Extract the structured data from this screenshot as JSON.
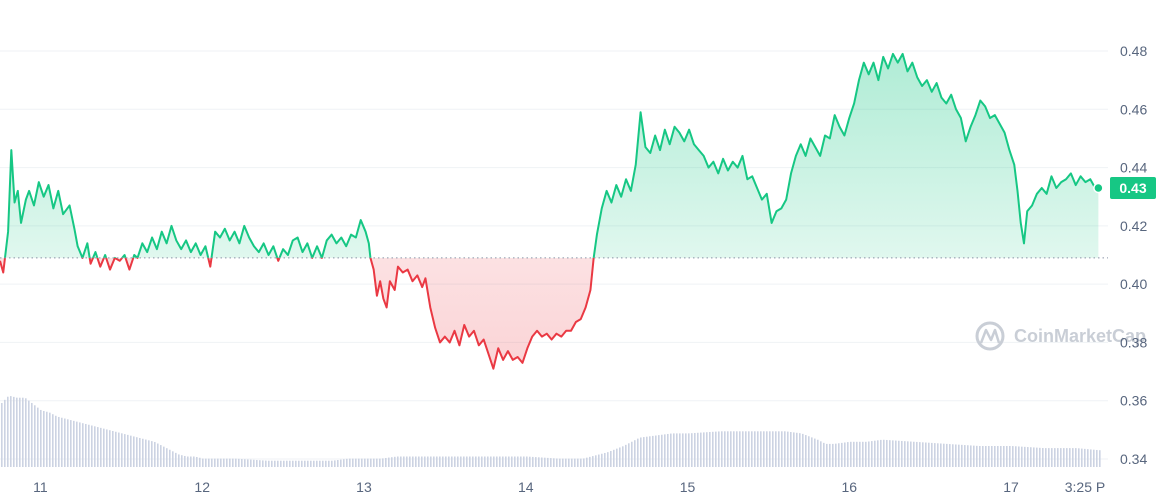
{
  "chart_data": {
    "type": "area",
    "title": "",
    "xlabel": "",
    "ylabel": "",
    "x_tick_labels": [
      "11",
      "12",
      "13",
      "14",
      "15",
      "16",
      "17",
      "3:25 P"
    ],
    "y_tick_labels": [
      "0.48",
      "0.46",
      "0.44",
      "0.42",
      "0.40",
      "0.38",
      "0.36",
      "0.34"
    ],
    "ylim": [
      0.34,
      0.48
    ],
    "xlim_days": [
      10.75,
      17.55
    ],
    "baseline": 0.409,
    "current_price_label": "0.43",
    "grid": "horizontal",
    "watermark": "CoinMarketCap",
    "colors": {
      "up": "#16c784",
      "down": "#ea3943",
      "volume": "#ccd3e2",
      "grid": "#eff2f5",
      "baseline": "#8a93a6",
      "axis_text": "#58667e",
      "watermark": "#c9ced6"
    },
    "series": [
      {
        "values": [
          [
            10.75,
            0.408
          ],
          [
            10.77,
            0.404
          ],
          [
            10.8,
            0.418
          ],
          [
            10.82,
            0.446
          ],
          [
            10.84,
            0.428
          ],
          [
            10.86,
            0.432
          ],
          [
            10.88,
            0.421
          ],
          [
            10.91,
            0.429
          ],
          [
            10.93,
            0.432
          ],
          [
            10.96,
            0.427
          ],
          [
            10.99,
            0.435
          ],
          [
            11.02,
            0.43
          ],
          [
            11.05,
            0.434
          ],
          [
            11.08,
            0.426
          ],
          [
            11.11,
            0.432
          ],
          [
            11.14,
            0.424
          ],
          [
            11.18,
            0.427
          ],
          [
            11.21,
            0.419
          ],
          [
            11.23,
            0.413
          ],
          [
            11.26,
            0.409
          ],
          [
            11.29,
            0.414
          ],
          [
            11.31,
            0.407
          ],
          [
            11.34,
            0.411
          ],
          [
            11.37,
            0.406
          ],
          [
            11.4,
            0.41
          ],
          [
            11.43,
            0.405
          ],
          [
            11.46,
            0.409
          ],
          [
            11.49,
            0.408
          ],
          [
            11.52,
            0.41
          ],
          [
            11.55,
            0.405
          ],
          [
            11.58,
            0.41
          ],
          [
            11.6,
            0.409
          ],
          [
            11.63,
            0.414
          ],
          [
            11.66,
            0.411
          ],
          [
            11.69,
            0.416
          ],
          [
            11.72,
            0.412
          ],
          [
            11.75,
            0.418
          ],
          [
            11.78,
            0.414
          ],
          [
            11.81,
            0.42
          ],
          [
            11.84,
            0.415
          ],
          [
            11.87,
            0.412
          ],
          [
            11.9,
            0.415
          ],
          [
            11.93,
            0.411
          ],
          [
            11.96,
            0.414
          ],
          [
            11.99,
            0.41
          ],
          [
            12.02,
            0.413
          ],
          [
            12.05,
            0.406
          ],
          [
            12.08,
            0.418
          ],
          [
            12.11,
            0.416
          ],
          [
            12.14,
            0.419
          ],
          [
            12.17,
            0.415
          ],
          [
            12.2,
            0.418
          ],
          [
            12.23,
            0.414
          ],
          [
            12.26,
            0.42
          ],
          [
            12.29,
            0.416
          ],
          [
            12.32,
            0.413
          ],
          [
            12.35,
            0.411
          ],
          [
            12.38,
            0.414
          ],
          [
            12.41,
            0.41
          ],
          [
            12.44,
            0.413
          ],
          [
            12.47,
            0.408
          ],
          [
            12.5,
            0.412
          ],
          [
            12.53,
            0.41
          ],
          [
            12.56,
            0.415
          ],
          [
            12.59,
            0.416
          ],
          [
            12.62,
            0.411
          ],
          [
            12.65,
            0.414
          ],
          [
            12.68,
            0.409
          ],
          [
            12.71,
            0.413
          ],
          [
            12.74,
            0.409
          ],
          [
            12.77,
            0.415
          ],
          [
            12.8,
            0.417
          ],
          [
            12.83,
            0.414
          ],
          [
            12.86,
            0.416
          ],
          [
            12.89,
            0.413
          ],
          [
            12.92,
            0.417
          ],
          [
            12.95,
            0.416
          ],
          [
            12.98,
            0.422
          ],
          [
            13.01,
            0.418
          ],
          [
            13.03,
            0.414
          ],
          [
            13.04,
            0.409
          ],
          [
            13.06,
            0.405
          ],
          [
            13.08,
            0.396
          ],
          [
            13.1,
            0.401
          ],
          [
            13.12,
            0.395
          ],
          [
            13.14,
            0.392
          ],
          [
            13.16,
            0.401
          ],
          [
            13.19,
            0.398
          ],
          [
            13.21,
            0.406
          ],
          [
            13.24,
            0.404
          ],
          [
            13.27,
            0.405
          ],
          [
            13.3,
            0.401
          ],
          [
            13.33,
            0.403
          ],
          [
            13.36,
            0.399
          ],
          [
            13.38,
            0.402
          ],
          [
            13.41,
            0.392
          ],
          [
            13.44,
            0.385
          ],
          [
            13.47,
            0.38
          ],
          [
            13.5,
            0.382
          ],
          [
            13.53,
            0.38
          ],
          [
            13.56,
            0.384
          ],
          [
            13.59,
            0.379
          ],
          [
            13.62,
            0.386
          ],
          [
            13.65,
            0.382
          ],
          [
            13.68,
            0.384
          ],
          [
            13.71,
            0.379
          ],
          [
            13.74,
            0.381
          ],
          [
            13.77,
            0.376
          ],
          [
            13.8,
            0.371
          ],
          [
            13.83,
            0.378
          ],
          [
            13.86,
            0.374
          ],
          [
            13.89,
            0.377
          ],
          [
            13.92,
            0.374
          ],
          [
            13.95,
            0.375
          ],
          [
            13.98,
            0.373
          ],
          [
            14.01,
            0.378
          ],
          [
            14.04,
            0.382
          ],
          [
            14.07,
            0.384
          ],
          [
            14.1,
            0.382
          ],
          [
            14.13,
            0.383
          ],
          [
            14.16,
            0.381
          ],
          [
            14.19,
            0.383
          ],
          [
            14.22,
            0.382
          ],
          [
            14.25,
            0.384
          ],
          [
            14.28,
            0.384
          ],
          [
            14.31,
            0.387
          ],
          [
            14.34,
            0.388
          ],
          [
            14.37,
            0.392
          ],
          [
            14.4,
            0.398
          ],
          [
            14.42,
            0.409
          ],
          [
            14.44,
            0.417
          ],
          [
            14.47,
            0.426
          ],
          [
            14.5,
            0.432
          ],
          [
            14.53,
            0.428
          ],
          [
            14.56,
            0.434
          ],
          [
            14.59,
            0.43
          ],
          [
            14.62,
            0.436
          ],
          [
            14.65,
            0.432
          ],
          [
            14.68,
            0.441
          ],
          [
            14.71,
            0.459
          ],
          [
            14.74,
            0.447
          ],
          [
            14.77,
            0.445
          ],
          [
            14.8,
            0.451
          ],
          [
            14.83,
            0.446
          ],
          [
            14.86,
            0.453
          ],
          [
            14.89,
            0.448
          ],
          [
            14.92,
            0.454
          ],
          [
            14.95,
            0.452
          ],
          [
            14.98,
            0.449
          ],
          [
            15.01,
            0.453
          ],
          [
            15.04,
            0.448
          ],
          [
            15.07,
            0.446
          ],
          [
            15.1,
            0.444
          ],
          [
            15.13,
            0.44
          ],
          [
            15.16,
            0.442
          ],
          [
            15.19,
            0.438
          ],
          [
            15.22,
            0.443
          ],
          [
            15.25,
            0.439
          ],
          [
            15.28,
            0.442
          ],
          [
            15.31,
            0.44
          ],
          [
            15.34,
            0.444
          ],
          [
            15.37,
            0.436
          ],
          [
            15.4,
            0.437
          ],
          [
            15.43,
            0.433
          ],
          [
            15.46,
            0.429
          ],
          [
            15.49,
            0.431
          ],
          [
            15.52,
            0.421
          ],
          [
            15.55,
            0.425
          ],
          [
            15.58,
            0.426
          ],
          [
            15.61,
            0.429
          ],
          [
            15.64,
            0.438
          ],
          [
            15.67,
            0.444
          ],
          [
            15.7,
            0.448
          ],
          [
            15.73,
            0.444
          ],
          [
            15.76,
            0.45
          ],
          [
            15.79,
            0.447
          ],
          [
            15.82,
            0.444
          ],
          [
            15.85,
            0.451
          ],
          [
            15.88,
            0.45
          ],
          [
            15.91,
            0.458
          ],
          [
            15.94,
            0.454
          ],
          [
            15.97,
            0.451
          ],
          [
            16.0,
            0.457
          ],
          [
            16.03,
            0.462
          ],
          [
            16.06,
            0.47
          ],
          [
            16.09,
            0.476
          ],
          [
            16.12,
            0.472
          ],
          [
            16.15,
            0.476
          ],
          [
            16.18,
            0.47
          ],
          [
            16.21,
            0.478
          ],
          [
            16.24,
            0.474
          ],
          [
            16.27,
            0.479
          ],
          [
            16.3,
            0.476
          ],
          [
            16.33,
            0.479
          ],
          [
            16.36,
            0.473
          ],
          [
            16.39,
            0.476
          ],
          [
            16.42,
            0.471
          ],
          [
            16.45,
            0.468
          ],
          [
            16.48,
            0.47
          ],
          [
            16.51,
            0.466
          ],
          [
            16.54,
            0.469
          ],
          [
            16.57,
            0.464
          ],
          [
            16.6,
            0.462
          ],
          [
            16.63,
            0.465
          ],
          [
            16.66,
            0.46
          ],
          [
            16.69,
            0.457
          ],
          [
            16.72,
            0.449
          ],
          [
            16.75,
            0.454
          ],
          [
            16.78,
            0.458
          ],
          [
            16.81,
            0.463
          ],
          [
            16.84,
            0.461
          ],
          [
            16.87,
            0.457
          ],
          [
            16.9,
            0.458
          ],
          [
            16.93,
            0.455
          ],
          [
            16.96,
            0.452
          ],
          [
            16.99,
            0.446
          ],
          [
            17.02,
            0.441
          ],
          [
            17.04,
            0.432
          ],
          [
            17.06,
            0.421
          ],
          [
            17.08,
            0.414
          ],
          [
            17.1,
            0.425
          ],
          [
            17.13,
            0.427
          ],
          [
            17.16,
            0.431
          ],
          [
            17.19,
            0.433
          ],
          [
            17.22,
            0.431
          ],
          [
            17.25,
            0.437
          ],
          [
            17.28,
            0.433
          ],
          [
            17.31,
            0.435
          ],
          [
            17.34,
            0.436
          ],
          [
            17.37,
            0.438
          ],
          [
            17.4,
            0.434
          ],
          [
            17.43,
            0.437
          ],
          [
            17.46,
            0.435
          ],
          [
            17.49,
            0.436
          ],
          [
            17.52,
            0.433
          ],
          [
            17.54,
            0.433
          ]
        ]
      }
    ],
    "volume": [
      [
        10.75,
        0.3
      ],
      [
        10.8,
        0.34
      ],
      [
        10.85,
        0.33
      ],
      [
        10.9,
        0.33
      ],
      [
        10.95,
        0.3
      ],
      [
        11.0,
        0.27
      ],
      [
        11.05,
        0.26
      ],
      [
        11.1,
        0.24
      ],
      [
        11.15,
        0.23
      ],
      [
        11.2,
        0.22
      ],
      [
        11.25,
        0.21
      ],
      [
        11.3,
        0.2
      ],
      [
        11.35,
        0.19
      ],
      [
        11.4,
        0.18
      ],
      [
        11.45,
        0.17
      ],
      [
        11.5,
        0.16
      ],
      [
        11.55,
        0.15
      ],
      [
        11.6,
        0.14
      ],
      [
        11.65,
        0.13
      ],
      [
        11.7,
        0.12
      ],
      [
        11.75,
        0.1
      ],
      [
        11.8,
        0.08
      ],
      [
        11.85,
        0.06
      ],
      [
        11.9,
        0.05
      ],
      [
        11.95,
        0.05
      ],
      [
        12.0,
        0.04
      ],
      [
        12.2,
        0.04
      ],
      [
        12.4,
        0.03
      ],
      [
        12.6,
        0.03
      ],
      [
        12.8,
        0.03
      ],
      [
        12.9,
        0.04
      ],
      [
        13.0,
        0.04
      ],
      [
        13.1,
        0.04
      ],
      [
        13.2,
        0.05
      ],
      [
        13.4,
        0.05
      ],
      [
        13.6,
        0.05
      ],
      [
        13.8,
        0.05
      ],
      [
        14.0,
        0.05
      ],
      [
        14.2,
        0.04
      ],
      [
        14.35,
        0.04
      ],
      [
        14.4,
        0.05
      ],
      [
        14.5,
        0.07
      ],
      [
        14.6,
        0.1
      ],
      [
        14.7,
        0.14
      ],
      [
        14.8,
        0.15
      ],
      [
        14.9,
        0.16
      ],
      [
        15.0,
        0.16
      ],
      [
        15.2,
        0.17
      ],
      [
        15.4,
        0.17
      ],
      [
        15.6,
        0.17
      ],
      [
        15.7,
        0.16
      ],
      [
        15.8,
        0.13
      ],
      [
        15.85,
        0.11
      ],
      [
        15.9,
        0.11
      ],
      [
        16.0,
        0.12
      ],
      [
        16.1,
        0.12
      ],
      [
        16.2,
        0.13
      ],
      [
        16.4,
        0.12
      ],
      [
        16.6,
        0.11
      ],
      [
        16.8,
        0.1
      ],
      [
        17.0,
        0.1
      ],
      [
        17.2,
        0.09
      ],
      [
        17.4,
        0.09
      ],
      [
        17.54,
        0.08
      ]
    ]
  }
}
